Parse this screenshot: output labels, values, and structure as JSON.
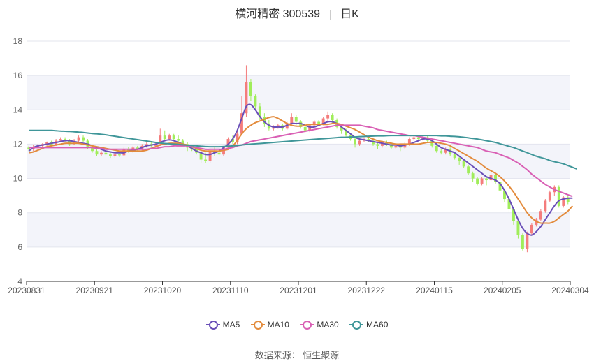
{
  "title": {
    "name": "横河精密 300539",
    "period": "日K"
  },
  "source": "数据来源： 恒生聚源",
  "chart_data": {
    "type": "candlestick",
    "ylim": [
      4,
      18
    ],
    "yticks": [
      4,
      6,
      8,
      10,
      12,
      14,
      16,
      18
    ],
    "xticks": [
      "20230831",
      "20230921",
      "20231020",
      "20231110",
      "20231201",
      "20231222",
      "20240115",
      "20240205",
      "20240304"
    ],
    "colors": {
      "up": "#f47c7c",
      "down": "#a0ed5a",
      "MA5": "#6a4fb8",
      "MA10": "#e38b3c",
      "MA30": "#d95fb4",
      "MA60": "#3f9699"
    },
    "legend": [
      "MA5",
      "MA10",
      "MA30",
      "MA60"
    ],
    "candles": [
      [
        11.8,
        11.7,
        11.9,
        11.6
      ],
      [
        11.7,
        11.85,
        11.95,
        11.6
      ],
      [
        11.85,
        11.9,
        12.0,
        11.75
      ],
      [
        11.9,
        12.0,
        12.05,
        11.8
      ],
      [
        12.0,
        12.1,
        12.15,
        11.9
      ],
      [
        12.1,
        11.95,
        12.2,
        11.85
      ],
      [
        11.95,
        12.2,
        12.3,
        11.9
      ],
      [
        12.2,
        12.3,
        12.4,
        12.1
      ],
      [
        12.3,
        12.2,
        12.4,
        12.1
      ],
      [
        12.2,
        12.0,
        12.3,
        11.9
      ],
      [
        12.0,
        12.2,
        12.3,
        11.95
      ],
      [
        12.2,
        12.4,
        12.5,
        12.1
      ],
      [
        12.4,
        12.2,
        12.5,
        12.1
      ],
      [
        12.2,
        11.8,
        12.3,
        11.7
      ],
      [
        11.8,
        11.6,
        11.9,
        11.5
      ],
      [
        11.6,
        11.4,
        11.7,
        11.3
      ],
      [
        11.4,
        11.5,
        11.6,
        11.3
      ],
      [
        11.5,
        11.4,
        11.6,
        11.3
      ],
      [
        11.4,
        11.3,
        11.5,
        11.2
      ],
      [
        11.3,
        11.4,
        11.5,
        11.2
      ],
      [
        11.4,
        11.35,
        11.5,
        11.25
      ],
      [
        11.35,
        11.7,
        11.8,
        11.3
      ],
      [
        11.7,
        11.6,
        11.85,
        11.5
      ],
      [
        11.6,
        11.8,
        11.9,
        11.5
      ],
      [
        11.8,
        11.7,
        11.9,
        11.6
      ],
      [
        11.7,
        11.9,
        12.0,
        11.6
      ],
      [
        11.9,
        12.0,
        12.1,
        11.8
      ],
      [
        12.0,
        11.9,
        12.1,
        11.8
      ],
      [
        11.9,
        12.0,
        12.1,
        11.8
      ],
      [
        12.0,
        12.5,
        12.9,
        11.9
      ],
      [
        12.5,
        12.3,
        12.8,
        12.2
      ],
      [
        12.3,
        12.5,
        12.6,
        12.2
      ],
      [
        12.5,
        12.3,
        12.6,
        12.2
      ],
      [
        12.3,
        12.2,
        12.5,
        12.1
      ],
      [
        12.2,
        12.0,
        12.3,
        11.9
      ],
      [
        12.0,
        11.8,
        12.1,
        11.6
      ],
      [
        11.8,
        11.7,
        11.9,
        11.6
      ],
      [
        11.7,
        11.5,
        11.8,
        11.4
      ],
      [
        11.5,
        11.1,
        11.6,
        10.9
      ],
      [
        11.1,
        11.0,
        11.5,
        10.9
      ],
      [
        11.0,
        11.6,
        11.7,
        10.9
      ],
      [
        11.6,
        11.5,
        11.8,
        11.3
      ],
      [
        11.5,
        11.4,
        11.6,
        11.3
      ],
      [
        11.4,
        11.8,
        11.9,
        11.3
      ],
      [
        11.8,
        12.3,
        12.4,
        11.7
      ],
      [
        12.3,
        12.1,
        12.5,
        12.0
      ],
      [
        12.1,
        12.6,
        12.8,
        12.0
      ],
      [
        12.6,
        13.8,
        14.8,
        12.5
      ],
      [
        13.8,
        15.6,
        16.6,
        13.6
      ],
      [
        15.6,
        14.8,
        15.8,
        14.5
      ],
      [
        14.8,
        14.2,
        14.9,
        14.0
      ],
      [
        14.2,
        13.6,
        14.4,
        13.4
      ],
      [
        13.6,
        13.2,
        13.8,
        13.0
      ],
      [
        13.2,
        12.9,
        13.4,
        12.8
      ],
      [
        12.9,
        13.0,
        13.1,
        12.8
      ],
      [
        13.0,
        13.1,
        13.2,
        12.9
      ],
      [
        13.1,
        12.9,
        13.2,
        12.8
      ],
      [
        12.9,
        13.2,
        13.3,
        12.85
      ],
      [
        13.2,
        13.6,
        13.8,
        13.1
      ],
      [
        13.6,
        13.3,
        13.7,
        13.1
      ],
      [
        13.3,
        13.0,
        13.4,
        12.9
      ],
      [
        13.0,
        12.8,
        13.1,
        12.7
      ],
      [
        12.8,
        13.1,
        13.2,
        12.7
      ],
      [
        13.1,
        13.3,
        13.4,
        13.0
      ],
      [
        13.3,
        13.2,
        13.4,
        13.05
      ],
      [
        13.2,
        13.5,
        13.6,
        13.1
      ],
      [
        13.5,
        13.7,
        13.9,
        13.3
      ],
      [
        13.7,
        13.4,
        13.8,
        13.2
      ],
      [
        13.4,
        13.0,
        13.5,
        12.9
      ],
      [
        13.0,
        12.8,
        13.1,
        12.6
      ],
      [
        12.8,
        12.5,
        12.9,
        12.4
      ],
      [
        12.5,
        12.3,
        12.6,
        12.2
      ],
      [
        12.3,
        12.0,
        12.4,
        11.8
      ],
      [
        12.0,
        12.2,
        12.3,
        11.9
      ],
      [
        12.2,
        12.3,
        12.4,
        12.1
      ],
      [
        12.3,
        12.2,
        12.4,
        12.1
      ],
      [
        12.2,
        12.0,
        12.3,
        11.9
      ],
      [
        12.0,
        11.9,
        12.1,
        11.7
      ],
      [
        11.9,
        12.1,
        12.2,
        11.8
      ],
      [
        12.1,
        12.0,
        12.2,
        11.9
      ],
      [
        12.0,
        11.8,
        12.1,
        11.7
      ],
      [
        11.8,
        11.9,
        12.0,
        11.7
      ],
      [
        11.9,
        11.8,
        12.0,
        11.6
      ],
      [
        11.8,
        12.0,
        12.1,
        11.7
      ],
      [
        12.0,
        12.3,
        12.4,
        11.9
      ],
      [
        12.3,
        12.4,
        12.5,
        12.2
      ],
      [
        12.4,
        12.3,
        12.5,
        12.2
      ],
      [
        12.3,
        12.4,
        12.5,
        12.2
      ],
      [
        12.4,
        12.2,
        12.5,
        12.1
      ],
      [
        12.2,
        11.9,
        12.3,
        11.8
      ],
      [
        11.9,
        11.6,
        12.0,
        11.5
      ],
      [
        11.6,
        11.5,
        11.7,
        11.4
      ],
      [
        11.5,
        11.7,
        11.8,
        11.4
      ],
      [
        11.7,
        11.4,
        11.8,
        11.3
      ],
      [
        11.4,
        11.2,
        11.5,
        11.1
      ],
      [
        11.2,
        11.0,
        11.3,
        10.8
      ],
      [
        11.0,
        10.7,
        11.1,
        10.6
      ],
      [
        10.7,
        10.3,
        10.8,
        10.2
      ],
      [
        10.3,
        10.0,
        10.4,
        9.8
      ],
      [
        10.0,
        9.7,
        10.1,
        9.6
      ],
      [
        9.7,
        10.0,
        10.1,
        9.6
      ],
      [
        10.0,
        9.9,
        10.1,
        9.6
      ],
      [
        9.9,
        10.2,
        10.4,
        9.8
      ],
      [
        10.2,
        9.8,
        10.3,
        9.7
      ],
      [
        9.8,
        9.3,
        9.9,
        9.1
      ],
      [
        9.3,
        8.8,
        9.4,
        8.6
      ],
      [
        8.8,
        8.2,
        8.9,
        8.0
      ],
      [
        8.2,
        7.5,
        8.3,
        7.3
      ],
      [
        7.5,
        6.7,
        7.6,
        6.5
      ],
      [
        6.7,
        5.9,
        6.8,
        5.8
      ],
      [
        5.9,
        6.8,
        6.9,
        5.7
      ],
      [
        6.8,
        7.3,
        7.4,
        6.7
      ],
      [
        7.3,
        7.6,
        7.7,
        7.2
      ],
      [
        7.6,
        8.1,
        8.2,
        7.5
      ],
      [
        8.1,
        8.7,
        8.8,
        8.0
      ],
      [
        8.7,
        9.2,
        9.3,
        8.6
      ],
      [
        9.2,
        9.5,
        9.6,
        9.0
      ],
      [
        9.5,
        8.4,
        9.6,
        8.3
      ],
      [
        8.4,
        8.9,
        9.0,
        8.3
      ],
      [
        8.9,
        8.6,
        9.0,
        8.5
      ]
    ],
    "series": [
      {
        "name": "MA5",
        "values": [
          11.6,
          11.8,
          11.9,
          11.95,
          12.0,
          12.05,
          12.1,
          12.15,
          12.2,
          12.2,
          12.15,
          12.1,
          12.05,
          12.0,
          11.9,
          11.8,
          11.7,
          11.6,
          11.55,
          11.5,
          11.5,
          11.5,
          11.6,
          11.65,
          11.7,
          11.8,
          11.9,
          11.95,
          12.0,
          12.1,
          12.2,
          12.25,
          12.2,
          12.1,
          12.0,
          11.9,
          11.75,
          11.6,
          11.5,
          11.4,
          11.4,
          11.5,
          11.6,
          11.8,
          12.0,
          12.3,
          12.8,
          13.5,
          14.2,
          14.3,
          14.0,
          13.6,
          13.3,
          13.1,
          13.0,
          13.0,
          13.0,
          13.1,
          13.2,
          13.2,
          13.2,
          13.1,
          13.0,
          13.0,
          13.1,
          13.2,
          13.3,
          13.3,
          13.2,
          13.0,
          12.8,
          12.6,
          12.4,
          12.3,
          12.25,
          12.2,
          12.15,
          12.1,
          12.05,
          12.0,
          11.95,
          11.95,
          11.9,
          11.95,
          12.0,
          12.1,
          12.2,
          12.3,
          12.3,
          12.2,
          12.0,
          11.8,
          11.7,
          11.6,
          11.5,
          11.3,
          11.1,
          10.9,
          10.7,
          10.5,
          10.3,
          10.1,
          10.0,
          9.9,
          9.7,
          9.3,
          8.8,
          8.2,
          7.6,
          7.1,
          6.8,
          6.7,
          6.9,
          7.2,
          7.6,
          8.0,
          8.4,
          8.7,
          8.8,
          8.85,
          8.85
        ]
      },
      {
        "name": "MA10",
        "values": [
          11.5,
          11.55,
          11.65,
          11.75,
          11.85,
          11.9,
          11.95,
          12.0,
          12.05,
          12.05,
          12.05,
          12.05,
          12.0,
          11.95,
          11.9,
          11.85,
          11.8,
          11.75,
          11.7,
          11.65,
          11.6,
          11.6,
          11.6,
          11.6,
          11.6,
          11.6,
          11.65,
          11.75,
          11.85,
          11.95,
          12.0,
          12.05,
          12.05,
          12.05,
          12.0,
          11.95,
          11.85,
          11.75,
          11.65,
          11.6,
          11.6,
          11.6,
          11.6,
          11.65,
          11.7,
          11.9,
          12.2,
          12.6,
          12.9,
          13.1,
          13.25,
          13.35,
          13.45,
          13.55,
          13.6,
          13.5,
          13.35,
          13.2,
          13.1,
          13.05,
          13.05,
          13.1,
          13.15,
          13.15,
          13.15,
          13.15,
          13.15,
          13.2,
          13.2,
          13.15,
          13.05,
          12.95,
          12.85,
          12.7,
          12.55,
          12.4,
          12.3,
          12.2,
          12.15,
          12.1,
          12.05,
          12.0,
          12.0,
          12.0,
          12.0,
          12.0,
          12.0,
          12.05,
          12.1,
          12.1,
          12.1,
          12.05,
          12.0,
          11.9,
          11.75,
          11.6,
          11.45,
          11.3,
          11.15,
          11.0,
          10.8,
          10.6,
          10.45,
          10.3,
          10.1,
          9.85,
          9.55,
          9.2,
          8.8,
          8.4,
          8.0,
          7.7,
          7.5,
          7.4,
          7.4,
          7.4,
          7.5,
          7.7,
          7.9,
          8.1,
          8.4
        ]
      },
      {
        "name": "MA30",
        "values": [
          11.8,
          11.8,
          11.8,
          11.8,
          11.8,
          11.8,
          11.8,
          11.8,
          11.8,
          11.8,
          11.8,
          11.8,
          11.8,
          11.8,
          11.8,
          11.75,
          11.75,
          11.7,
          11.7,
          11.7,
          11.7,
          11.7,
          11.7,
          11.7,
          11.7,
          11.7,
          11.7,
          11.75,
          11.75,
          11.8,
          11.85,
          11.85,
          11.9,
          11.9,
          11.9,
          11.9,
          11.85,
          11.8,
          11.75,
          11.7,
          11.7,
          11.7,
          11.7,
          11.7,
          11.75,
          11.8,
          11.9,
          11.95,
          12.05,
          12.15,
          12.2,
          12.25,
          12.3,
          12.35,
          12.4,
          12.45,
          12.5,
          12.55,
          12.6,
          12.65,
          12.7,
          12.75,
          12.8,
          12.85,
          12.9,
          12.95,
          13.0,
          13.05,
          13.1,
          13.1,
          13.1,
          13.1,
          13.1,
          13.1,
          13.05,
          13.0,
          12.95,
          12.85,
          12.8,
          12.75,
          12.7,
          12.65,
          12.6,
          12.55,
          12.5,
          12.5,
          12.45,
          12.4,
          12.35,
          12.3,
          12.25,
          12.2,
          12.15,
          12.1,
          12.05,
          12.0,
          11.95,
          11.9,
          11.85,
          11.8,
          11.7,
          11.6,
          11.55,
          11.5,
          11.4,
          11.3,
          11.2,
          11.05,
          10.9,
          10.7,
          10.5,
          10.25,
          10.05,
          9.85,
          9.65,
          9.5,
          9.35,
          9.25,
          9.15,
          9.05,
          8.95
        ]
      },
      {
        "name": "MA60",
        "values": [
          12.8,
          12.8,
          12.8,
          12.8,
          12.8,
          12.8,
          12.78,
          12.76,
          12.75,
          12.74,
          12.72,
          12.7,
          12.68,
          12.65,
          12.62,
          12.6,
          12.57,
          12.54,
          12.5,
          12.46,
          12.42,
          12.38,
          12.34,
          12.3,
          12.26,
          12.22,
          12.18,
          12.14,
          12.1,
          12.07,
          12.04,
          12.02,
          12.0,
          11.98,
          11.96,
          11.94,
          11.92,
          11.9,
          11.88,
          11.86,
          11.85,
          11.85,
          11.85,
          11.86,
          11.88,
          11.9,
          11.92,
          11.95,
          11.98,
          12.0,
          12.02,
          12.04,
          12.06,
          12.08,
          12.1,
          12.12,
          12.14,
          12.16,
          12.18,
          12.2,
          12.22,
          12.24,
          12.26,
          12.28,
          12.3,
          12.32,
          12.34,
          12.36,
          12.38,
          12.4,
          12.4,
          12.42,
          12.42,
          12.44,
          12.45,
          12.46,
          12.47,
          12.48,
          12.48,
          12.49,
          12.5,
          12.5,
          12.5,
          12.5,
          12.5,
          12.5,
          12.5,
          12.5,
          12.5,
          12.5,
          12.5,
          12.48,
          12.48,
          12.46,
          12.45,
          12.43,
          12.4,
          12.37,
          12.33,
          12.3,
          12.25,
          12.2,
          12.15,
          12.1,
          12.02,
          11.95,
          11.87,
          11.8,
          11.7,
          11.6,
          11.5,
          11.4,
          11.3,
          11.22,
          11.15,
          11.05,
          10.98,
          10.92,
          10.85,
          10.75,
          10.65,
          10.55
        ]
      }
    ]
  }
}
